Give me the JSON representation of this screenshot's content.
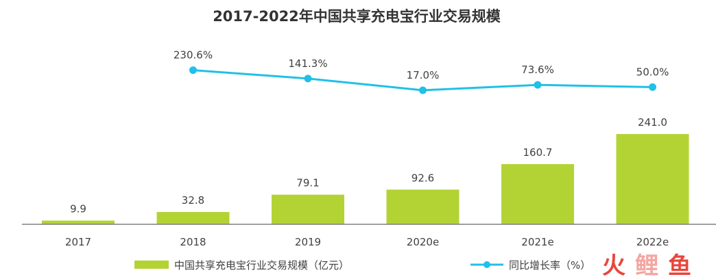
{
  "chart_data": {
    "type": "bar",
    "title": "2017-2022年中国共享充电宝行业交易规模",
    "categories": [
      "2017",
      "2018",
      "2019",
      "2020e",
      "2021e",
      "2022e"
    ],
    "series": [
      {
        "name": "中国共享充电宝行业交易规模（亿元）",
        "type": "bar",
        "color": "#b3d335",
        "values": [
          9.9,
          32.8,
          79.1,
          92.6,
          160.7,
          241.0
        ],
        "labels": [
          "9.9",
          "32.8",
          "79.1",
          "92.6",
          "160.7",
          "241.0"
        ]
      },
      {
        "name": "同比增长率（%）",
        "type": "line",
        "color": "#20c0e8",
        "values": [
          null,
          230.6,
          141.3,
          17.0,
          73.6,
          50.0
        ],
        "labels": [
          "",
          "230.6%",
          "141.3%",
          "17.0%",
          "73.6%",
          "50.0%"
        ]
      }
    ],
    "grid": false,
    "legend_position": "bottom"
  },
  "watermark": {
    "text": "火鲤鱼",
    "colors": [
      "#e8463c",
      "#f4a6a1",
      "#e8463c"
    ]
  }
}
